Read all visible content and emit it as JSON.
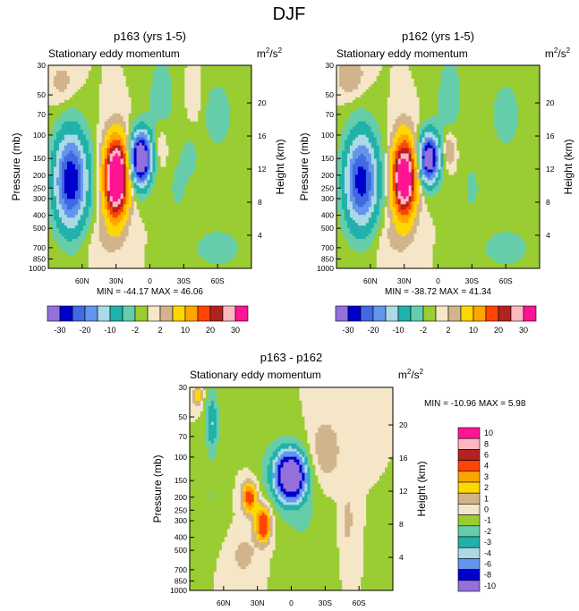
{
  "figure": {
    "title": "DJF",
    "hint_units": "m2/s2"
  },
  "chart_data": [
    {
      "type": "heatmap",
      "title": "p163 (yrs 1-5)",
      "subtitle": "Stationary eddy momentum",
      "units_base": "m",
      "units_exp": "2",
      "units_base2": "/s",
      "units_exp2": "2",
      "ylabel": "Pressure (mb)",
      "ylabel_right": "Height (km)",
      "x_ticks": [
        "60N",
        "30N",
        "0",
        "30S",
        "60S"
      ],
      "x_tick_values": [
        60,
        30,
        0,
        -30,
        -60
      ],
      "xlim": [
        90,
        -90
      ],
      "pressure_ticks": [
        "30",
        "50",
        "70",
        "100",
        "150",
        "200",
        "250",
        "300",
        "400",
        "500",
        "700",
        "850",
        "1000"
      ],
      "pressure_values": [
        30,
        50,
        70,
        100,
        150,
        200,
        250,
        300,
        400,
        500,
        700,
        850,
        1000
      ],
      "height_ticks": [
        "20",
        "16",
        "12",
        "8",
        "4"
      ],
      "height_values": [
        20,
        16,
        12,
        8,
        4
      ],
      "ylim": [
        30,
        1000
      ],
      "stats": "MIN = -44.17   MAX =  46.06",
      "min": -44.17,
      "max": 46.06,
      "features": [
        {
          "lat": 70,
          "p": 220,
          "amp": -30,
          "wlat": 10,
          "wlog": 0.55
        },
        {
          "lat": 30,
          "p": 210,
          "amp": 46,
          "wlat": 7,
          "wlog": 0.45
        },
        {
          "lat": 8,
          "p": 150,
          "amp": -44,
          "wlat": 6,
          "wlog": 0.3
        },
        {
          "lat": 78,
          "p": 40,
          "amp": 3,
          "wlat": 8,
          "wlog": 0.25
        },
        {
          "lat": 40,
          "p": 600,
          "amp": 2,
          "wlat": 12,
          "wlog": 0.3
        },
        {
          "lat": -10,
          "p": 120,
          "amp": 3,
          "wlat": 4,
          "wlog": 0.25
        },
        {
          "lat": -25,
          "p": 250,
          "amp": -3,
          "wlat": 5,
          "wlog": 0.3
        },
        {
          "lat": -35,
          "p": 150,
          "amp": -3,
          "wlat": 6,
          "wlog": 0.3
        },
        {
          "lat": -10,
          "p": 50,
          "amp": -3,
          "wlat": 10,
          "wlog": 0.7
        },
        {
          "lat": -60,
          "p": 70,
          "amp": -3,
          "wlat": 12,
          "wlog": 0.55
        },
        {
          "lat": -60,
          "p": 700,
          "amp": -3,
          "wlat": 20,
          "wlog": 0.3
        },
        {
          "lat": -40,
          "p": 50,
          "amp": 2,
          "wlat": 5,
          "wlog": 0.4
        }
      ]
    },
    {
      "type": "heatmap",
      "title": "p162 (yrs 1-5)",
      "subtitle": "Stationary eddy momentum",
      "units_base": "m",
      "units_exp": "2",
      "units_base2": "/s",
      "units_exp2": "2",
      "ylabel": "Pressure (mb)",
      "ylabel_right": "Height (km)",
      "x_ticks": [
        "60N",
        "30N",
        "0",
        "30S",
        "60S"
      ],
      "x_tick_values": [
        60,
        30,
        0,
        -30,
        -60
      ],
      "xlim": [
        90,
        -90
      ],
      "pressure_ticks": [
        "30",
        "50",
        "70",
        "100",
        "150",
        "200",
        "250",
        "300",
        "400",
        "500",
        "700",
        "850",
        "1000"
      ],
      "pressure_values": [
        30,
        50,
        70,
        100,
        150,
        200,
        250,
        300,
        400,
        500,
        700,
        850,
        1000
      ],
      "height_ticks": [
        "20",
        "16",
        "12",
        "8",
        "4"
      ],
      "height_values": [
        20,
        16,
        12,
        8,
        4
      ],
      "ylim": [
        30,
        1000
      ],
      "stats": "MIN = -38.72   MAX =  41.34",
      "min": -38.72,
      "max": 41.34,
      "features": [
        {
          "lat": 68,
          "p": 220,
          "amp": -28,
          "wlat": 10,
          "wlog": 0.55
        },
        {
          "lat": 30,
          "p": 210,
          "amp": 41,
          "wlat": 7,
          "wlog": 0.45
        },
        {
          "lat": 8,
          "p": 150,
          "amp": -38,
          "wlat": 6,
          "wlog": 0.28
        },
        {
          "lat": 78,
          "p": 35,
          "amp": 5,
          "wlat": 8,
          "wlog": 0.25
        },
        {
          "lat": 40,
          "p": 600,
          "amp": 2,
          "wlat": 12,
          "wlog": 0.3
        },
        {
          "lat": -10,
          "p": 130,
          "amp": 6,
          "wlat": 4,
          "wlog": 0.2
        },
        {
          "lat": -30,
          "p": 250,
          "amp": -3,
          "wlat": 5,
          "wlog": 0.3
        },
        {
          "lat": -10,
          "p": 50,
          "amp": -3,
          "wlat": 10,
          "wlog": 0.7
        },
        {
          "lat": -60,
          "p": 70,
          "amp": -3,
          "wlat": 12,
          "wlog": 0.55
        },
        {
          "lat": -60,
          "p": 700,
          "amp": -3,
          "wlat": 20,
          "wlog": 0.3
        }
      ]
    },
    {
      "type": "heatmap",
      "title": "p163 - p162",
      "subtitle": "Stationary eddy momentum",
      "units_base": "m",
      "units_exp": "2",
      "units_base2": "/s",
      "units_exp2": "2",
      "ylabel": "Pressure (mb)",
      "ylabel_right": "Height (km)",
      "x_ticks": [
        "60N",
        "30N",
        "0",
        "30S",
        "60S"
      ],
      "x_tick_values": [
        60,
        30,
        0,
        -30,
        -60
      ],
      "xlim": [
        90,
        -90
      ],
      "pressure_ticks": [
        "30",
        "50",
        "70",
        "100",
        "150",
        "200",
        "250",
        "300",
        "400",
        "500",
        "700",
        "850",
        "1000"
      ],
      "pressure_values": [
        30,
        50,
        70,
        100,
        150,
        200,
        250,
        300,
        400,
        500,
        700,
        850,
        1000
      ],
      "height_ticks": [
        "20",
        "16",
        "12",
        "8",
        "4"
      ],
      "height_values": [
        20,
        16,
        12,
        8,
        4
      ],
      "ylim": [
        30,
        1000
      ],
      "stats": "MIN = -10.96   MAX =    5.98",
      "min": -10.96,
      "max": 5.98,
      "features": [
        {
          "lat": 83,
          "p": 35,
          "amp": 3,
          "wlat": 3,
          "wlog": 0.12
        },
        {
          "lat": 70,
          "p": 55,
          "amp": -3,
          "wlat": 4,
          "wlog": 0.4
        },
        {
          "lat": 70,
          "p": 200,
          "amp": -1,
          "wlat": 8,
          "wlog": 0.4
        },
        {
          "lat": 37,
          "p": 200,
          "amp": 5,
          "wlat": 5,
          "wlog": 0.2
        },
        {
          "lat": 25,
          "p": 320,
          "amp": 6,
          "wlat": 5,
          "wlog": 0.22
        },
        {
          "lat": 42,
          "p": 550,
          "amp": 1.5,
          "wlat": 8,
          "wlog": 0.25
        },
        {
          "lat": 0,
          "p": 140,
          "amp": -10.5,
          "wlat": 8,
          "wlog": 0.25
        },
        {
          "lat": 5,
          "p": 130,
          "amp": -3,
          "wlat": 15,
          "wlog": 0.4
        },
        {
          "lat": -30,
          "p": 90,
          "amp": 2,
          "wlat": 10,
          "wlog": 0.4
        },
        {
          "lat": -50,
          "p": 300,
          "amp": 1.5,
          "wlat": 4,
          "wlog": 0.35
        },
        {
          "lat": -10,
          "p": 300,
          "amp": -1,
          "wlat": 15,
          "wlog": 0.45
        }
      ]
    }
  ],
  "colorbars": {
    "top": {
      "levels": [
        -30,
        -20,
        -10,
        -2,
        2,
        10,
        20,
        30
      ],
      "boundaries": [
        -30,
        -25,
        -20,
        -15,
        -10,
        -5,
        -2,
        0,
        2,
        5,
        10,
        15,
        20,
        25,
        30
      ],
      "labels": [
        "-30",
        "-20",
        "-10",
        "-2",
        "2",
        "10",
        "20",
        "30"
      ],
      "colors": [
        "#9370db",
        "#0000cd",
        "#4169e1",
        "#6495ed",
        "#add8e6",
        "#20b2aa",
        "#66cdaa",
        "#9acd32",
        "#f5e6c8",
        "#d2b48c",
        "#ffd700",
        "#ffa500",
        "#ff4500",
        "#b22222",
        "#ffb6c1",
        "#ff1493"
      ]
    },
    "bottom": {
      "labels": [
        "10",
        "8",
        "6",
        "4",
        "3",
        "2",
        "1",
        "0",
        "-1",
        "-2",
        "-3",
        "-4",
        "-6",
        "-8",
        "-10"
      ],
      "boundaries": [
        10,
        8,
        6,
        4,
        3,
        2,
        1,
        0,
        -1,
        -2,
        -3,
        -4,
        -6,
        -8,
        -10
      ],
      "colors": [
        "#ff1493",
        "#ffb6c1",
        "#b22222",
        "#ff4500",
        "#ffa500",
        "#ffd700",
        "#d2b48c",
        "#f5e6c8",
        "#9acd32",
        "#66cdaa",
        "#20b2aa",
        "#add8e6",
        "#6495ed",
        "#0000cd",
        "#9370db"
      ]
    }
  }
}
